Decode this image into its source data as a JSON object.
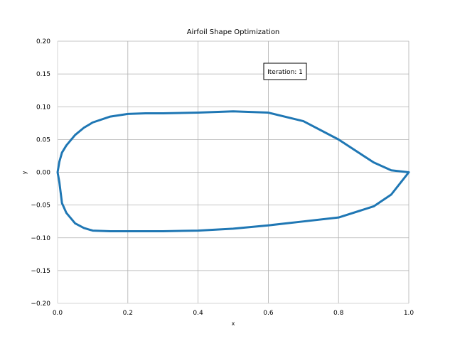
{
  "chart_data": {
    "type": "line",
    "title": "Airfoil Shape Optimization",
    "xlabel": "x",
    "ylabel": "y",
    "xlim": [
      0,
      1
    ],
    "ylim": [
      -0.2,
      0.2
    ],
    "grid": true,
    "x_ticks": [
      0.0,
      0.2,
      0.4,
      0.6,
      0.8,
      1.0
    ],
    "x_tick_labels": [
      "0.0",
      "0.2",
      "0.4",
      "0.6",
      "0.8",
      "1.0"
    ],
    "y_ticks": [
      0.2,
      0.15,
      0.1,
      0.05,
      0.0,
      -0.05,
      -0.1,
      -0.15,
      -0.2
    ],
    "y_tick_labels": [
      "0.20",
      "0.15",
      "0.10",
      "0.05",
      "0.00",
      "−0.05",
      "−0.10",
      "−0.15",
      "−0.20"
    ],
    "annotation": "Iteration: 1",
    "series": [
      {
        "color": "#1f77b4",
        "x": [
          1.0,
          0.95,
          0.9,
          0.8,
          0.7,
          0.6,
          0.5,
          0.4,
          0.3,
          0.25,
          0.2,
          0.15,
          0.1,
          0.075,
          0.05,
          0.025,
          0.0125,
          0.005,
          0.0,
          0.005,
          0.0125,
          0.025,
          0.05,
          0.075,
          0.1,
          0.15,
          0.2,
          0.25,
          0.3,
          0.4,
          0.5,
          0.6,
          0.7,
          0.8,
          0.9,
          0.95,
          1.0
        ],
        "y": [
          0.0,
          0.003,
          0.015,
          0.05,
          0.078,
          0.091,
          0.093,
          0.091,
          0.09,
          0.09,
          0.089,
          0.085,
          0.076,
          0.068,
          0.057,
          0.041,
          0.03,
          0.016,
          0.0,
          -0.015,
          -0.047,
          -0.062,
          -0.078,
          -0.085,
          -0.089,
          -0.09,
          -0.09,
          -0.09,
          -0.09,
          -0.089,
          -0.086,
          -0.081,
          -0.075,
          -0.069,
          -0.052,
          -0.034,
          0.0
        ]
      }
    ]
  }
}
